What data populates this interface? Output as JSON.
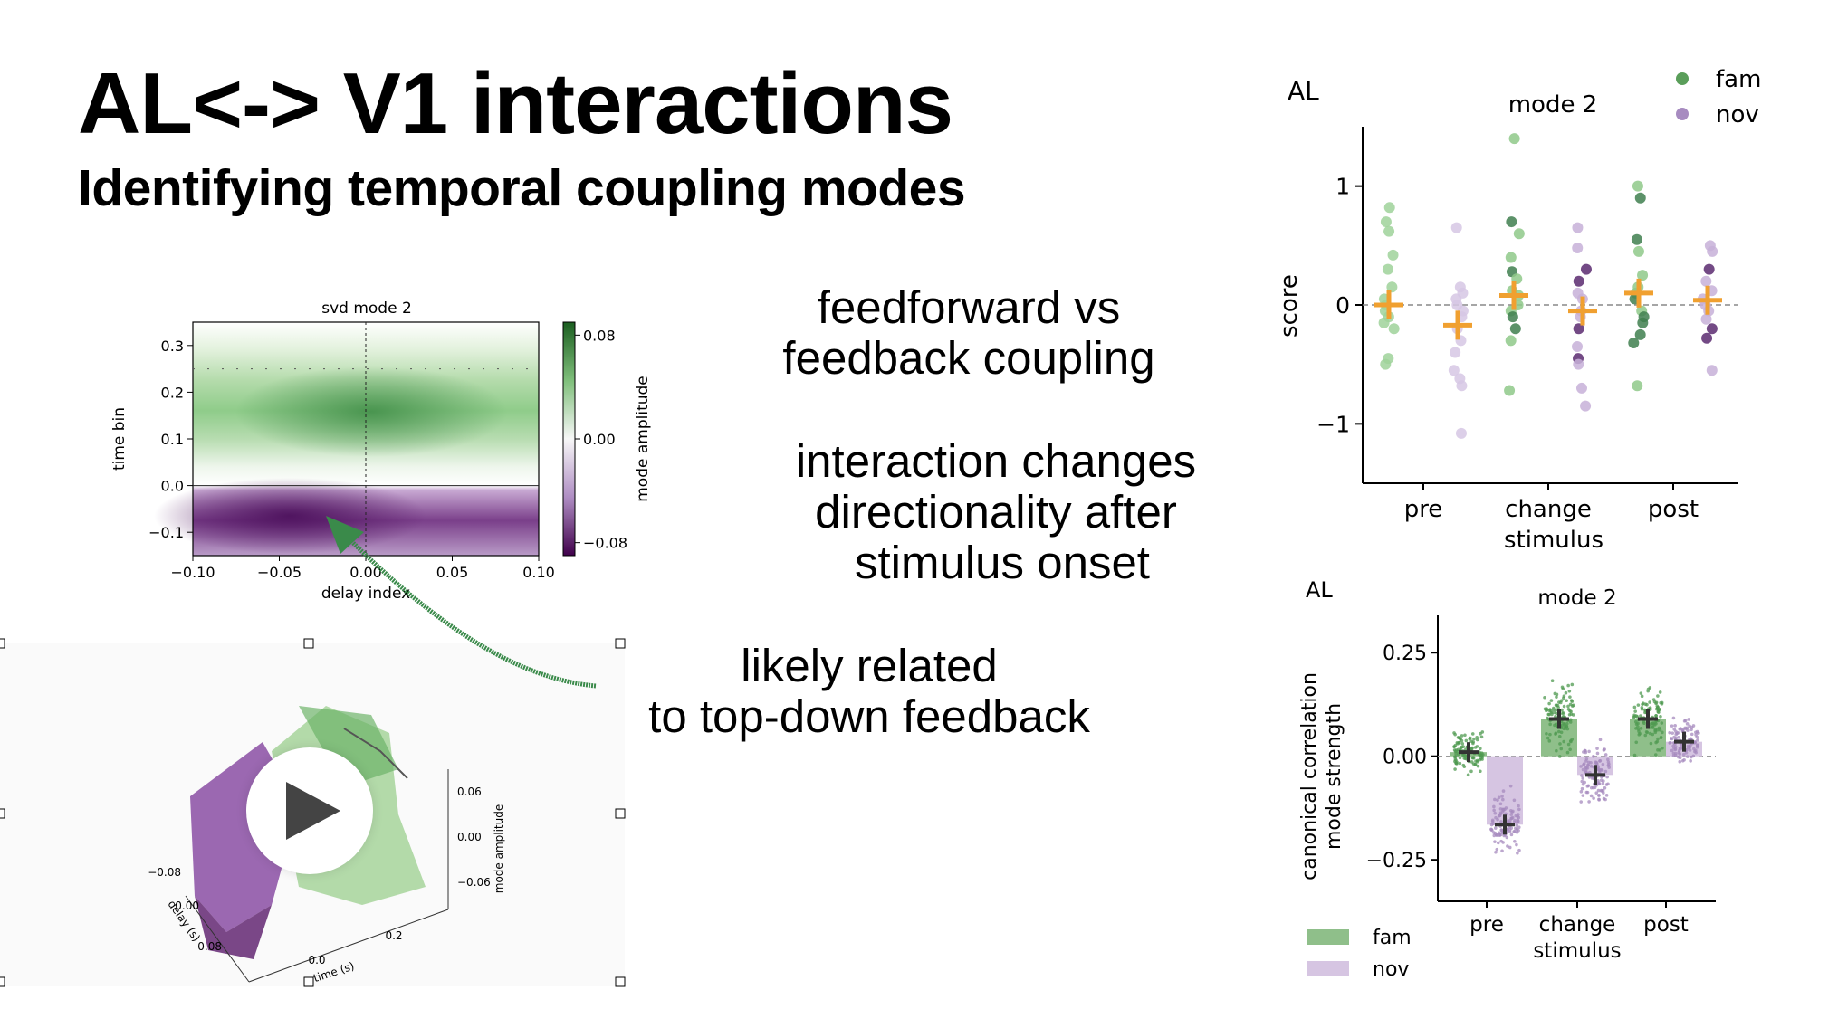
{
  "slide": {
    "title": "AL<-> V1 interactions",
    "subtitle": "Identifying temporal coupling modes",
    "text1": [
      "feedforward vs",
      "feedback coupling"
    ],
    "text2": [
      "interaction changes",
      "directionality after",
      "stimulus onset"
    ],
    "text3": [
      "likely related",
      "to top-down feedback"
    ]
  },
  "colors": {
    "fam": "#5a9e5a",
    "nov": "#a78bc0",
    "median": "#f0a030",
    "accent_green": "#3a8a4a",
    "accent_purple": "#5a1a6a"
  },
  "video": {
    "icon": "play-icon"
  },
  "chart_data": [
    {
      "type": "heatmap",
      "title": "svd mode 2",
      "xlabel": "delay index",
      "ylabel": "time bin",
      "colorbar_label": "mode amplitude",
      "xticks": [
        "−0.10",
        "−0.05",
        "0.00",
        "0.05",
        "0.10"
      ],
      "yticks": [
        "0.3",
        "0.2",
        "0.1",
        "0.0",
        "−0.1"
      ],
      "colorbar_ticks": [
        "0.08",
        "0.00",
        "−0.08"
      ],
      "xlim": [
        -0.1,
        0.1
      ],
      "ylim": [
        -0.15,
        0.35
      ],
      "clim": [
        -0.09,
        0.09
      ]
    },
    {
      "type": "scatter",
      "panel_label": "AL",
      "title": "mode 2",
      "ylabel": "score",
      "xlabel": "stimulus",
      "categories": [
        "pre",
        "change",
        "post"
      ],
      "yticks": [
        "1",
        "0",
        "−1"
      ],
      "ylim": [
        -1.5,
        1.5
      ],
      "legend": [
        "fam",
        "nov"
      ],
      "legend_position": "top-right",
      "series": [
        {
          "name": "fam",
          "groups": [
            [
              0.82,
              0.7,
              0.62,
              0.42,
              0.3,
              0.15,
              0.05,
              0.0,
              -0.05,
              -0.1,
              -0.15,
              -0.2,
              -0.45,
              -0.5
            ],
            [
              1.4,
              0.7,
              0.6,
              0.4,
              0.28,
              0.22,
              0.12,
              0.08,
              0.0,
              -0.05,
              -0.1,
              -0.2,
              -0.3,
              -0.72
            ],
            [
              1.0,
              0.9,
              0.55,
              0.45,
              0.25,
              0.15,
              0.1,
              0.05,
              -0.05,
              -0.1,
              -0.15,
              -0.25,
              -0.32,
              -0.68
            ]
          ],
          "medians": [
            0.0,
            0.08,
            0.1
          ]
        },
        {
          "name": "nov",
          "groups": [
            [
              0.65,
              0.15,
              0.1,
              0.05,
              0.0,
              -0.05,
              -0.1,
              -0.2,
              -0.3,
              -0.4,
              -0.55,
              -0.62,
              -0.68,
              -1.08
            ],
            [
              0.65,
              0.48,
              0.3,
              0.2,
              0.1,
              0.05,
              -0.05,
              -0.1,
              -0.2,
              -0.35,
              -0.45,
              -0.5,
              -0.7,
              -0.85
            ],
            [
              0.5,
              0.45,
              0.3,
              0.2,
              0.12,
              0.05,
              0.0,
              -0.05,
              -0.12,
              -0.2,
              -0.28,
              -0.55
            ]
          ],
          "medians": [
            -0.17,
            -0.05,
            0.04
          ]
        }
      ]
    },
    {
      "type": "bar",
      "panel_label": "AL",
      "title": "mode 2",
      "ylabel": "canonical correlation mode strength",
      "ylabel_lines": [
        "canonical correlation",
        "mode strength"
      ],
      "xlabel": "stimulus",
      "categories": [
        "pre",
        "change",
        "post"
      ],
      "yticks": [
        "0.25",
        "0.00",
        "−0.25"
      ],
      "ylim": [
        -0.35,
        0.34
      ],
      "legend": [
        "fam",
        "nov"
      ],
      "legend_position": "bottom-left",
      "series": [
        {
          "name": "fam",
          "values": [
            0.01,
            0.09,
            0.09
          ],
          "spread": [
            0.07,
            0.12,
            0.1
          ]
        },
        {
          "name": "nov",
          "values": [
            -0.165,
            -0.045,
            0.035
          ],
          "spread": [
            0.1,
            0.1,
            0.07
          ]
        }
      ]
    },
    {
      "type": "surface",
      "zlabel": "mode amplitude",
      "xlabel": "time (s)",
      "ylabel": "delay (s)",
      "zticks": [
        "0.06",
        "0.00",
        "−0.06"
      ],
      "delay_ticks": [
        "−0.08",
        "0.00",
        "0.08"
      ],
      "time_ticks": [
        "0.0",
        "0.2"
      ]
    }
  ]
}
